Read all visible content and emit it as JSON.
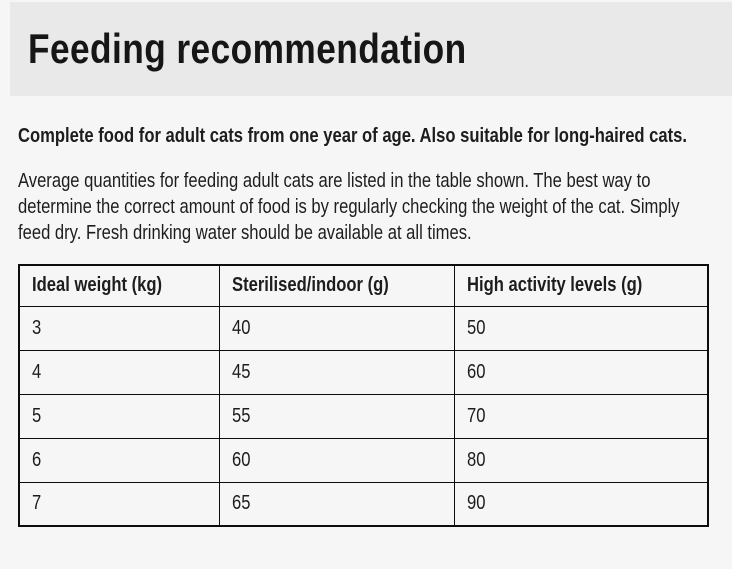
{
  "header": {
    "title": "Feeding recommendation"
  },
  "intro": {
    "bold_text": "Complete food for adult cats from one year of age. Also suitable for long-haired cats.",
    "body_text": "Average quantities for feeding adult cats are listed in the table shown. The best way to determine the correct amount of food is by regularly checking the weight of the cat. Simply feed dry. Fresh drinking water should be available at all times."
  },
  "table": {
    "columns": [
      "Ideal weight (kg)",
      "Sterilised/indoor (g)",
      "High activity levels (g)"
    ],
    "rows": [
      [
        "3",
        "40",
        "50"
      ],
      [
        "4",
        "45",
        "60"
      ],
      [
        "5",
        "55",
        "70"
      ],
      [
        "6",
        "60",
        "80"
      ],
      [
        "7",
        "65",
        "90"
      ]
    ]
  },
  "colors": {
    "header_band": "#e9e9e9",
    "page_background": "#f6f6f6",
    "text": "#1d1d1d",
    "table_border": "#0d0d0d"
  }
}
